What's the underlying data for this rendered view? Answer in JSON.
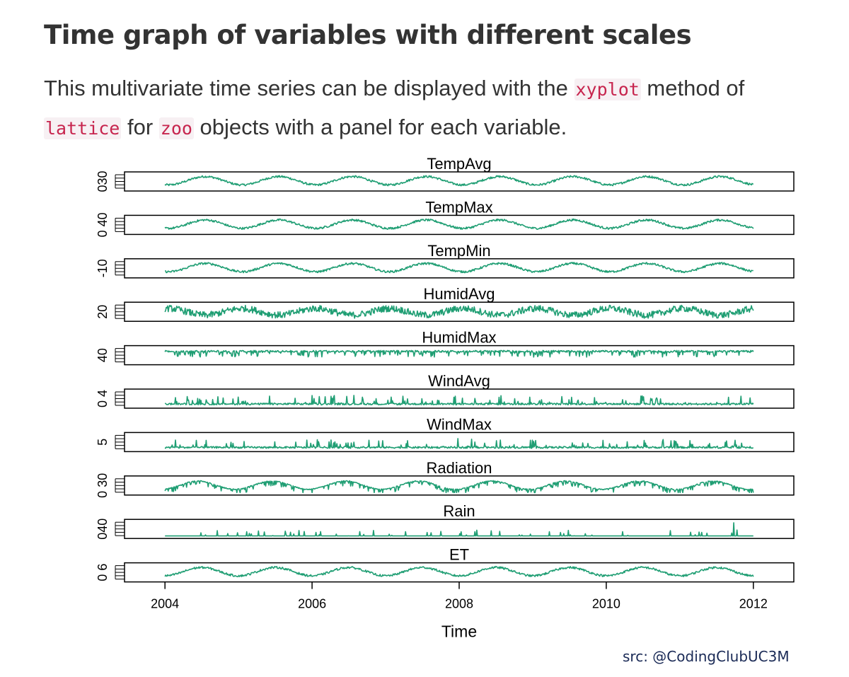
{
  "heading": "Time graph of variables with different scales",
  "description": {
    "part1": "This multivariate time series can be displayed with the ",
    "code1": "xyplot",
    "part2": " method of ",
    "code2": "lattice",
    "part3": " for ",
    "code3": "zoo",
    "part4": " objects with a panel for each variable."
  },
  "credit": "src: @CodingClubUC3M",
  "chart_data": {
    "type": "line",
    "xlabel": "Time",
    "xlim": [
      2003.45,
      2012.55
    ],
    "x_ticks": [
      "2004",
      "2006",
      "2008",
      "2010",
      "2012"
    ],
    "x_tick_values": [
      2004,
      2006,
      2008,
      2010,
      2012
    ],
    "series_color": "#1f9e73",
    "panels": [
      {
        "name": "TempAvg",
        "y_tick_label": "030",
        "shape": "seasonal",
        "seasonal_peak": 0.55,
        "noise": "light"
      },
      {
        "name": "TempMax",
        "y_tick_label": "0 40",
        "shape": "seasonal",
        "seasonal_peak": 0.55,
        "noise": "light"
      },
      {
        "name": "TempMin",
        "y_tick_label": "-10",
        "shape": "seasonal",
        "seasonal_peak": 0.55,
        "noise": "light"
      },
      {
        "name": "HumidAvg",
        "y_tick_label": "20",
        "shape": "seasonal_inverse",
        "seasonal_peak": 0.05,
        "noise": "heavy"
      },
      {
        "name": "HumidMax",
        "y_tick_label": "40",
        "shape": "high_flat",
        "noise": "heavy_down"
      },
      {
        "name": "WindAvg",
        "y_tick_label": "0 4",
        "shape": "spiky_low",
        "noise": "spikes"
      },
      {
        "name": "WindMax",
        "y_tick_label": "5",
        "shape": "spiky_low",
        "noise": "spikes"
      },
      {
        "name": "Radiation",
        "y_tick_label": "0 30",
        "shape": "seasonal",
        "seasonal_peak": 0.45,
        "noise": "dips"
      },
      {
        "name": "Rain",
        "y_tick_label": "040",
        "shape": "baseline_spikes",
        "noise": "rare_spikes"
      },
      {
        "name": "ET",
        "y_tick_label": "0 6",
        "shape": "seasonal",
        "seasonal_peak": 0.5,
        "noise": "light"
      }
    ]
  }
}
